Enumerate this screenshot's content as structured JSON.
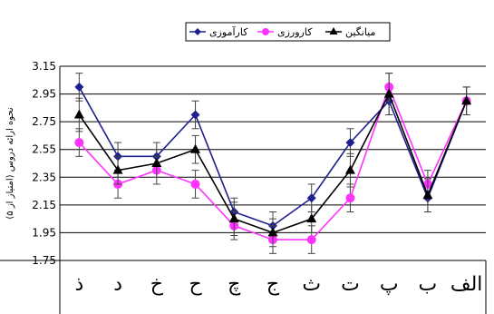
{
  "chart_data": {
    "type": "line",
    "title": "",
    "xlabel": "",
    "ylabel": "نحوه ارائه دروس (امتیاز از ۵)",
    "ylim": [
      1.75,
      3.15
    ],
    "yticks": [
      "1.75",
      "1.95",
      "2.15",
      "2.35",
      "2.55",
      "2.75",
      "2.95",
      "3.15"
    ],
    "grid": true,
    "legend_position": "top",
    "x_direction": "right-to-left",
    "categories": [
      "الف",
      "ب",
      "پ",
      "ت",
      "ث",
      "ج",
      "چ",
      "ح",
      "خ",
      "د",
      "ذ"
    ],
    "series": [
      {
        "name": "کارآموزی",
        "color": "#1F1F8F",
        "marker": "diamond",
        "values": [
          2.9,
          2.2,
          2.9,
          2.6,
          2.2,
          2.0,
          2.1,
          2.8,
          2.5,
          2.5,
          3.0
        ],
        "error": [
          0.1,
          0.1,
          0.1,
          0.1,
          0.1,
          0.1,
          0.1,
          0.1,
          0.1,
          0.1,
          0.1
        ]
      },
      {
        "name": "کارورزی",
        "color": "#FF33FF",
        "marker": "circle",
        "values": [
          2.9,
          2.3,
          3.0,
          2.2,
          1.9,
          1.9,
          2.0,
          2.3,
          2.4,
          2.3,
          2.6
        ],
        "error": [
          0.1,
          0.1,
          0.1,
          0.1,
          0.1,
          0.1,
          0.1,
          0.1,
          0.1,
          0.1,
          0.1
        ]
      },
      {
        "name": "میانگین",
        "color": "#000000",
        "marker": "triangle",
        "values": [
          2.9,
          2.22,
          2.95,
          2.4,
          2.05,
          1.95,
          2.05,
          2.55,
          2.45,
          2.4,
          2.8
        ],
        "error": [
          0.1,
          0.12,
          0.15,
          0.12,
          0.1,
          0.1,
          0.12,
          0.1,
          0.1,
          0.1,
          0.12
        ]
      }
    ]
  }
}
